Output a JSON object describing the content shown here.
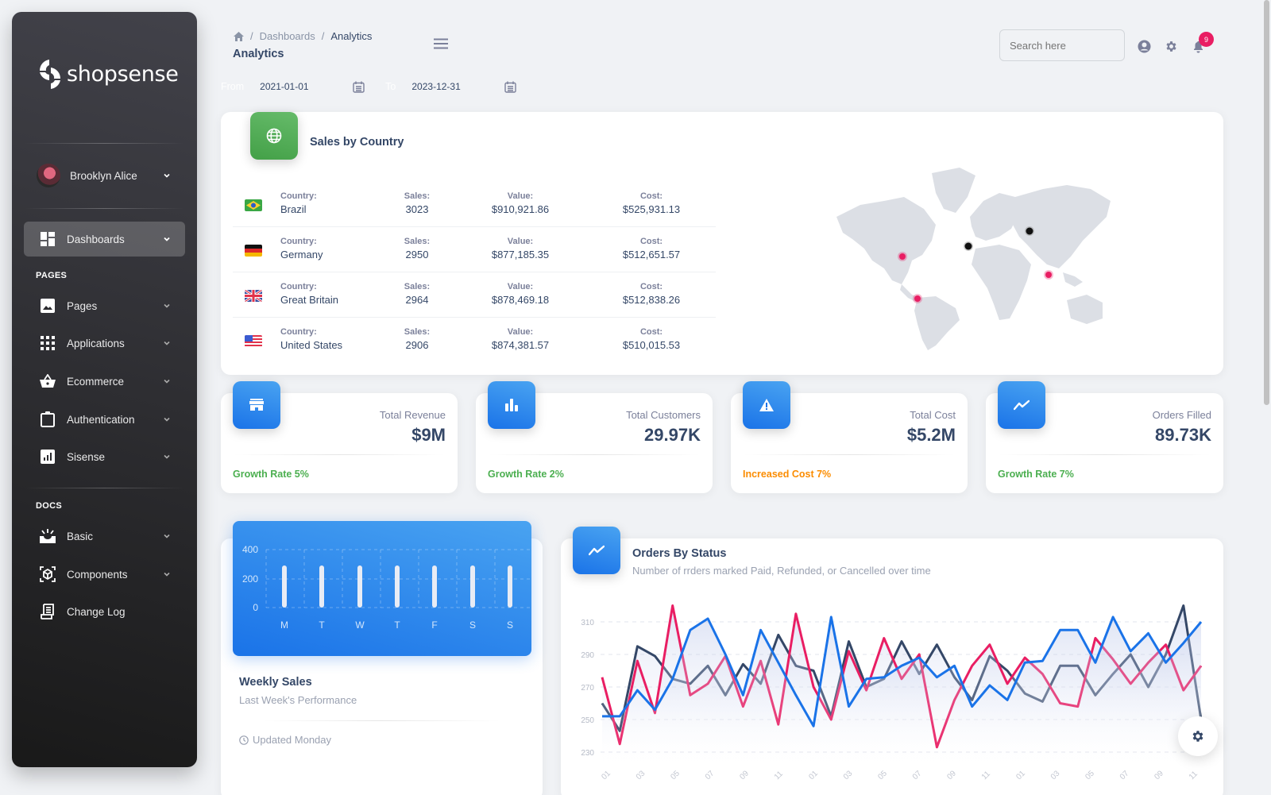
{
  "sidebar": {
    "brand": "shopsense",
    "user": {
      "name": "Brooklyn Alice"
    },
    "items": [
      {
        "label": "Dashboards",
        "icon": "dashboard-icon",
        "active": true
      },
      {
        "label": "Pages",
        "icon": "image-icon"
      },
      {
        "label": "Applications",
        "icon": "apps-grid-icon"
      },
      {
        "label": "Ecommerce",
        "icon": "basket-icon"
      },
      {
        "label": "Authentication",
        "icon": "clipboard-icon"
      },
      {
        "label": "Sisense",
        "icon": "analytics-icon"
      },
      {
        "label": "Basic",
        "icon": "upcoming-icon"
      },
      {
        "label": "Components",
        "icon": "view-in-ar-icon"
      },
      {
        "label": "Change Log",
        "icon": "receipt-icon"
      }
    ],
    "sections": {
      "pages": "PAGES",
      "docs": "DOCS"
    }
  },
  "header": {
    "breadcrumb": [
      "Dashboards",
      "Analytics"
    ],
    "title": "Analytics",
    "date_from_label": "From",
    "date_from": "2021-01-01",
    "date_to_label": "To",
    "date_to": "2023-12-31",
    "search_placeholder": "Search here",
    "notification_count": "9"
  },
  "sales_by_country": {
    "title": "Sales by Country",
    "labels": {
      "country": "Country:",
      "sales": "Sales:",
      "value": "Value:",
      "cost": "Cost:"
    },
    "rows": [
      {
        "country": "Brazil",
        "sales": "3023",
        "value": "$910,921.86",
        "cost": "$525,931.13",
        "flag": "brazil"
      },
      {
        "country": "Germany",
        "sales": "2950",
        "value": "$877,185.35",
        "cost": "$512,651.57",
        "flag": "germany"
      },
      {
        "country": "Great Britain",
        "sales": "2964",
        "value": "$878,469.18",
        "cost": "$512,838.26",
        "flag": "uk"
      },
      {
        "country": "United States",
        "sales": "2906",
        "value": "$874,381.57",
        "cost": "$510,015.53",
        "flag": "us"
      }
    ],
    "map_markers": [
      {
        "region": "USA",
        "color": "#e91e63"
      },
      {
        "region": "Brazil",
        "color": "#e91e63"
      },
      {
        "region": "Germany",
        "color": "#111111"
      },
      {
        "region": "Russia",
        "color": "#111111"
      },
      {
        "region": "China",
        "color": "#e91e63"
      }
    ]
  },
  "stats": [
    {
      "label": "Total Revenue",
      "value": "$9M",
      "foot": "Growth Rate 5%",
      "foot_color": "#4caf50",
      "icon": "store-icon"
    },
    {
      "label": "Total Customers",
      "value": "29.97K",
      "foot": "Growth Rate 2%",
      "foot_color": "#4caf50",
      "icon": "bar-chart-icon"
    },
    {
      "label": "Total Cost",
      "value": "$5.2M",
      "foot": "Increased Cost 7%",
      "foot_color": "#fb8c00",
      "icon": "warning-icon"
    },
    {
      "label": "Orders Filled",
      "value": "89.73K",
      "foot": "Growth Rate 7%",
      "foot_color": "#4caf50",
      "icon": "trending-icon"
    }
  ],
  "weekly_sales": {
    "title": "Weekly Sales",
    "subtitle": "Last Week's Performance",
    "updated": "Updated Monday"
  },
  "orders_by_status": {
    "title": "Orders By Status",
    "subtitle": "Number of rrders marked Paid, Refunded, or Cancelled over time"
  },
  "chart_data": [
    {
      "type": "bar",
      "title": "Weekly Sales",
      "categories": [
        "M",
        "T",
        "W",
        "T",
        "F",
        "S",
        "S"
      ],
      "values": [
        290,
        290,
        290,
        290,
        290,
        290,
        290
      ],
      "yticks": [
        0,
        200,
        400
      ],
      "ylim": [
        0,
        400
      ],
      "grid": true
    },
    {
      "type": "line",
      "title": "Orders By Status",
      "yticks": [
        230,
        250,
        270,
        290,
        310
      ],
      "ylim": [
        226,
        318
      ],
      "xtick_labels": [
        "01",
        "03",
        "05",
        "07",
        "09",
        "11",
        "01",
        "03",
        "05",
        "07",
        "09",
        "11",
        "01",
        "03",
        "05",
        "07",
        "09",
        "11"
      ],
      "series": [
        {
          "name": "Paid",
          "color": "#1a73e8",
          "values": [
            252,
            252,
            268,
            256,
            275,
            305,
            312,
            290,
            265,
            305,
            285,
            265,
            246,
            313,
            258,
            275,
            276,
            283,
            288,
            276,
            283,
            258,
            271,
            262,
            285,
            286,
            305,
            305,
            285,
            313,
            292,
            303,
            285,
            297,
            310
          ]
        },
        {
          "name": "Refunded",
          "color": "#e91e63",
          "values": [
            276,
            235,
            286,
            254,
            320,
            265,
            272,
            289,
            258,
            286,
            247,
            315,
            270,
            250,
            292,
            268,
            300,
            275,
            290,
            233,
            262,
            283,
            296,
            272,
            288,
            278,
            260,
            258,
            300,
            287,
            272,
            285,
            296,
            268,
            283
          ]
        },
        {
          "name": "Cancelled",
          "color": "#344767",
          "values": [
            260,
            243,
            295,
            289,
            275,
            272,
            283,
            265,
            284,
            272,
            302,
            283,
            280,
            252,
            298,
            270,
            275,
            298,
            278,
            296,
            276,
            262,
            289,
            280,
            266,
            261,
            283,
            283,
            265,
            278,
            290,
            270,
            290,
            320,
            250
          ]
        }
      ],
      "grid": true
    }
  ]
}
